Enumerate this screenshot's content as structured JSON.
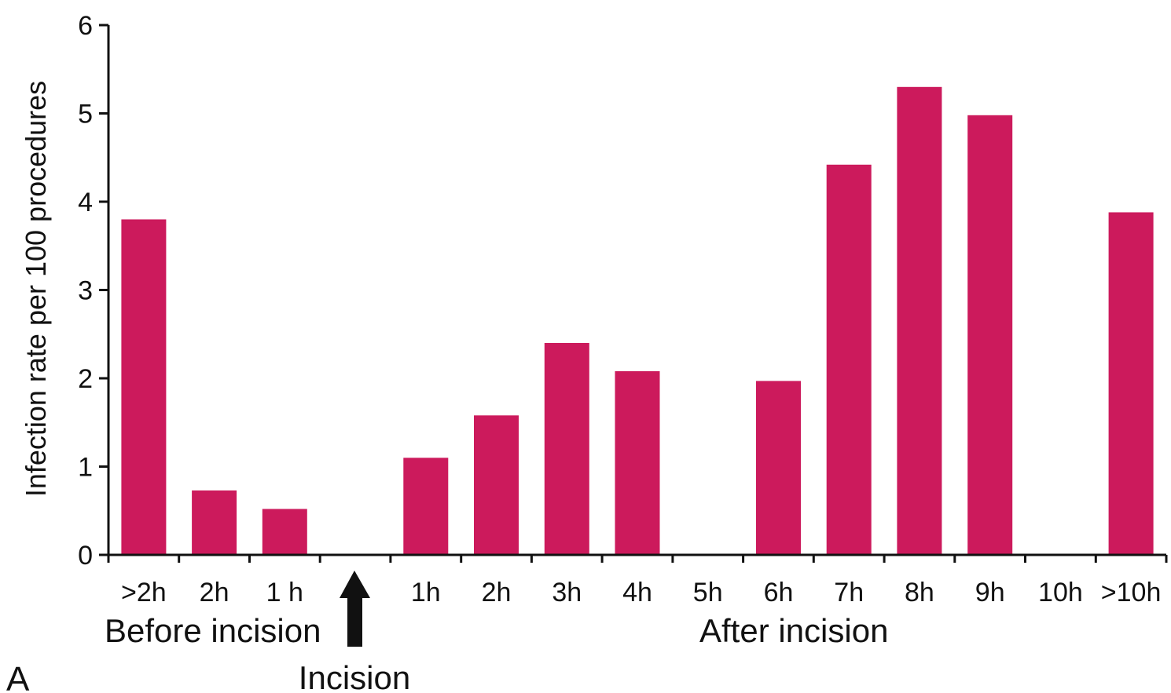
{
  "chart_data": {
    "type": "bar",
    "categories": [
      ">2h",
      "2h",
      "1 h",
      "",
      "1h",
      "2h",
      "3h",
      "4h",
      "5h",
      "6h",
      "7h",
      "8h",
      "9h",
      "10h",
      ">10h"
    ],
    "values": [
      3.8,
      0.73,
      0.52,
      0,
      1.1,
      1.58,
      2.4,
      2.08,
      0,
      1.97,
      4.42,
      5.3,
      4.98,
      0,
      3.88
    ],
    "ylabel": "Infection rate per 100 procedures",
    "xlabel": "",
    "ylim": [
      0,
      6
    ],
    "yticks": [
      0,
      1,
      2,
      3,
      4,
      5,
      6
    ],
    "grid": false,
    "colors": {
      "bar": "#cc1a5c",
      "axis": "#111111"
    },
    "annotations": {
      "before_label": "Before incision",
      "after_label": "After incision",
      "incision_label": "Incision",
      "panel_label": "A"
    }
  }
}
